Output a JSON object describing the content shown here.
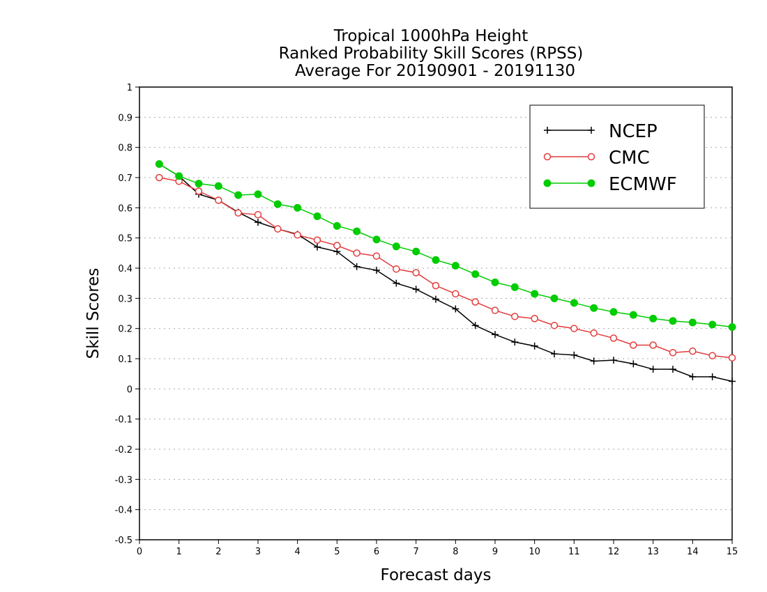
{
  "chart_data": {
    "type": "line",
    "title_lines": [
      "Tropical 1000hPa Height",
      "Ranked Probability Skill Scores (RPSS)",
      "Average For 20190901 - 20191130"
    ],
    "xlabel": "Forecast days",
    "ylabel": "Skill Scores",
    "xlim": [
      0,
      15
    ],
    "ylim": [
      -0.5,
      1
    ],
    "xticks": [
      "0",
      "1",
      "2",
      "3",
      "4",
      "5",
      "6",
      "7",
      "8",
      "9",
      "10",
      "11",
      "12",
      "13",
      "14",
      "15"
    ],
    "yticks": [
      "-0.5",
      "-0.4",
      "-0.3",
      "-0.2",
      "-0.1",
      "0",
      "0.1",
      "0.2",
      "0.3",
      "0.4",
      "0.5",
      "0.6",
      "0.7",
      "0.8",
      "0.9",
      "1"
    ],
    "grid": "horizontal dotted",
    "legend_position": "top-right",
    "x": [
      0.5,
      1,
      1.5,
      2,
      2.5,
      3,
      3.5,
      4,
      4.5,
      5,
      5.5,
      6,
      6.5,
      7,
      7.5,
      8,
      8.5,
      9,
      9.5,
      10,
      10.5,
      11,
      11.5,
      12,
      12.5,
      13,
      13.5,
      14,
      14.5,
      15
    ],
    "series": [
      {
        "name": "NCEP",
        "color": "#000000",
        "marker": "plus",
        "values": [
          0.745,
          0.705,
          0.645,
          0.625,
          0.585,
          0.552,
          0.53,
          0.512,
          0.47,
          0.455,
          0.405,
          0.393,
          0.35,
          0.33,
          0.297,
          0.265,
          0.21,
          0.18,
          0.155,
          0.142,
          0.116,
          0.112,
          0.092,
          0.095,
          0.083,
          0.065,
          0.065,
          0.04,
          0.04,
          0.025
        ]
      },
      {
        "name": "CMC",
        "color": "#e23b3b",
        "marker": "open-circle",
        "values": [
          0.7,
          0.688,
          0.655,
          0.625,
          0.583,
          0.577,
          0.53,
          0.51,
          0.493,
          0.475,
          0.45,
          0.44,
          0.397,
          0.385,
          0.342,
          0.315,
          0.288,
          0.26,
          0.24,
          0.233,
          0.21,
          0.2,
          0.185,
          0.168,
          0.145,
          0.145,
          0.12,
          0.125,
          0.11,
          0.103
        ]
      },
      {
        "name": "ECMWF",
        "color": "#00cc00",
        "marker": "filled-circle",
        "values": [
          0.745,
          0.705,
          0.68,
          0.672,
          0.642,
          0.645,
          0.612,
          0.6,
          0.572,
          0.54,
          0.522,
          0.495,
          0.472,
          0.455,
          0.427,
          0.408,
          0.38,
          0.353,
          0.337,
          0.315,
          0.3,
          0.285,
          0.268,
          0.255,
          0.245,
          0.233,
          0.225,
          0.22,
          0.213,
          0.205
        ]
      }
    ]
  }
}
